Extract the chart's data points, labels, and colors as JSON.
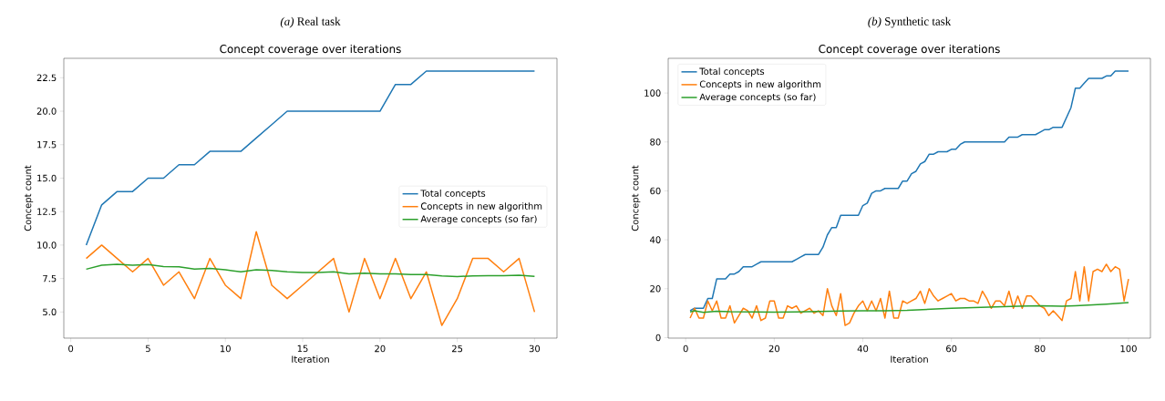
{
  "chart_data": [
    {
      "type": "line",
      "title": "*(a)* Real task",
      "subtitle": "Concept coverage over iterations",
      "xlabel": "Iteration",
      "ylabel": "Concept count",
      "x": [
        1,
        2,
        3,
        4,
        5,
        6,
        7,
        8,
        9,
        10,
        11,
        12,
        13,
        14,
        15,
        16,
        17,
        18,
        19,
        20,
        21,
        22,
        23,
        24,
        25,
        26,
        27,
        28,
        29,
        30
      ],
      "xlim": [
        -0.45,
        31.45
      ],
      "ylim": [
        3.05,
        23.95
      ],
      "xticks": [
        0,
        5,
        10,
        15,
        20,
        25,
        30
      ],
      "yticks": [
        {
          "value": 5,
          "label": "5.0"
        },
        {
          "value": 7.5,
          "label": "7.5"
        },
        {
          "value": 10,
          "label": "10.0"
        },
        {
          "value": 12.5,
          "label": "12.5"
        },
        {
          "value": 15,
          "label": "15.0"
        },
        {
          "value": 17.5,
          "label": "17.5"
        },
        {
          "value": 20,
          "label": "20.0"
        },
        {
          "value": 22.5,
          "label": "22.5"
        }
      ],
      "legend": "right",
      "series": [
        {
          "name": "Total concepts",
          "color": "#1f77b4",
          "values": [
            10,
            13,
            14,
            14,
            15,
            15,
            16,
            16,
            17,
            17,
            17,
            18,
            19,
            20,
            20,
            20,
            20,
            20,
            20,
            20,
            22,
            22,
            23,
            23,
            23,
            23,
            23,
            23,
            23,
            23
          ]
        },
        {
          "name": "Concepts in new algorithm",
          "color": "#ff7f0e",
          "values": [
            9,
            10,
            9,
            8,
            9,
            7,
            8,
            6,
            9,
            7,
            6,
            11,
            7,
            6,
            7,
            8,
            9,
            5,
            9,
            6,
            9,
            6,
            8,
            4,
            6,
            9,
            9,
            8,
            9,
            5
          ]
        },
        {
          "name": "Average concepts (so far)",
          "color": "#2ca02c",
          "values": [
            8.2,
            8.5,
            8.57,
            8.5,
            8.55,
            8.4,
            8.37,
            8.2,
            8.25,
            8.15,
            8.0,
            8.15,
            8.1,
            8.0,
            7.95,
            7.95,
            8.0,
            7.85,
            7.9,
            7.85,
            7.85,
            7.8,
            7.8,
            7.7,
            7.65,
            7.7,
            7.72,
            7.72,
            7.75,
            7.67
          ]
        }
      ]
    },
    {
      "type": "line",
      "title": "*(b)* Synthetic task",
      "subtitle": "Concept coverage over iterations",
      "xlabel": "Iteration",
      "ylabel": "Concept count",
      "x": [
        1,
        2,
        3,
        4,
        5,
        6,
        7,
        8,
        9,
        10,
        11,
        12,
        13,
        14,
        15,
        16,
        17,
        18,
        19,
        20,
        21,
        22,
        23,
        24,
        25,
        26,
        27,
        28,
        29,
        30,
        31,
        32,
        33,
        34,
        35,
        36,
        37,
        38,
        39,
        40,
        41,
        42,
        43,
        44,
        45,
        46,
        47,
        48,
        49,
        50,
        51,
        52,
        53,
        54,
        55,
        56,
        57,
        58,
        59,
        60,
        61,
        62,
        63,
        64,
        65,
        66,
        67,
        68,
        69,
        70,
        71,
        72,
        73,
        74,
        75,
        76,
        77,
        78,
        79,
        80,
        81,
        82,
        83,
        84,
        85,
        86,
        87,
        88,
        89,
        90,
        91,
        92,
        93,
        94,
        95,
        96,
        97,
        98,
        99,
        100
      ],
      "xlim": [
        -3.95,
        104.95
      ],
      "ylim": [
        -0.2,
        114.2
      ],
      "xticks": [
        0,
        20,
        40,
        60,
        80,
        100
      ],
      "yticks": [
        0,
        20,
        40,
        60,
        80,
        100
      ],
      "legend": "top left",
      "series": [
        {
          "name": "Total concepts",
          "color": "#1f77b4",
          "values": [
            11,
            12,
            12,
            12,
            16,
            16,
            24,
            24,
            24,
            26,
            26,
            27,
            29,
            29,
            29,
            30,
            31,
            31,
            31,
            31,
            31,
            31,
            31,
            31,
            32,
            33,
            34,
            34,
            34,
            34,
            37,
            42,
            45,
            45,
            50,
            50,
            50,
            50,
            50,
            54,
            55,
            59,
            60,
            60,
            61,
            61,
            61,
            61,
            64,
            64,
            67,
            68,
            71,
            72,
            75,
            75,
            76,
            76,
            76,
            77,
            77,
            79,
            80,
            80,
            80,
            80,
            80,
            80,
            80,
            80,
            80,
            80,
            82,
            82,
            82,
            83,
            83,
            83,
            83,
            84,
            85,
            85,
            86,
            86,
            86,
            90,
            94,
            102,
            102,
            104,
            106,
            106,
            106,
            106,
            107,
            107,
            109,
            109,
            109,
            109
          ]
        },
        {
          "name": "Concepts in new algorithm",
          "color": "#ff7f0e",
          "values": [
            8,
            12,
            8,
            8,
            15,
            11,
            15,
            8,
            8,
            13,
            6,
            9,
            12,
            11,
            8,
            13,
            7,
            8,
            15,
            15,
            8,
            8,
            13,
            12,
            13,
            10,
            11,
            12,
            10,
            11,
            9,
            20,
            13,
            9,
            18,
            5,
            6,
            10,
            13,
            15,
            11,
            15,
            11,
            16,
            8,
            19,
            8,
            8,
            15,
            14,
            15,
            16,
            19,
            14,
            20,
            17,
            15,
            16,
            17,
            18,
            15,
            16,
            16,
            15,
            15,
            14,
            19,
            16,
            12,
            15,
            15,
            13,
            19,
            12,
            17,
            12,
            17,
            17,
            15,
            13,
            12,
            9,
            11,
            9,
            7,
            15,
            16,
            27,
            15,
            29,
            15,
            27,
            28,
            27,
            30,
            27,
            29,
            28,
            15,
            24
          ]
        },
        {
          "name": "Average concepts (so far)",
          "color": "#2ca02c",
          "x": [
            1,
            2,
            4,
            7,
            10,
            15,
            20,
            25,
            30,
            35,
            40,
            45,
            50,
            55,
            60,
            65,
            70,
            75,
            80,
            85,
            88,
            90,
            95,
            100
          ],
          "values": [
            10.5,
            11,
            10.3,
            10.8,
            10.6,
            10.5,
            10.4,
            10.5,
            10.7,
            10.9,
            11,
            11,
            11.2,
            11.6,
            12,
            12.3,
            12.6,
            12.8,
            13,
            12.8,
            13,
            13.2,
            13.7,
            14.3
          ]
        }
      ]
    }
  ]
}
